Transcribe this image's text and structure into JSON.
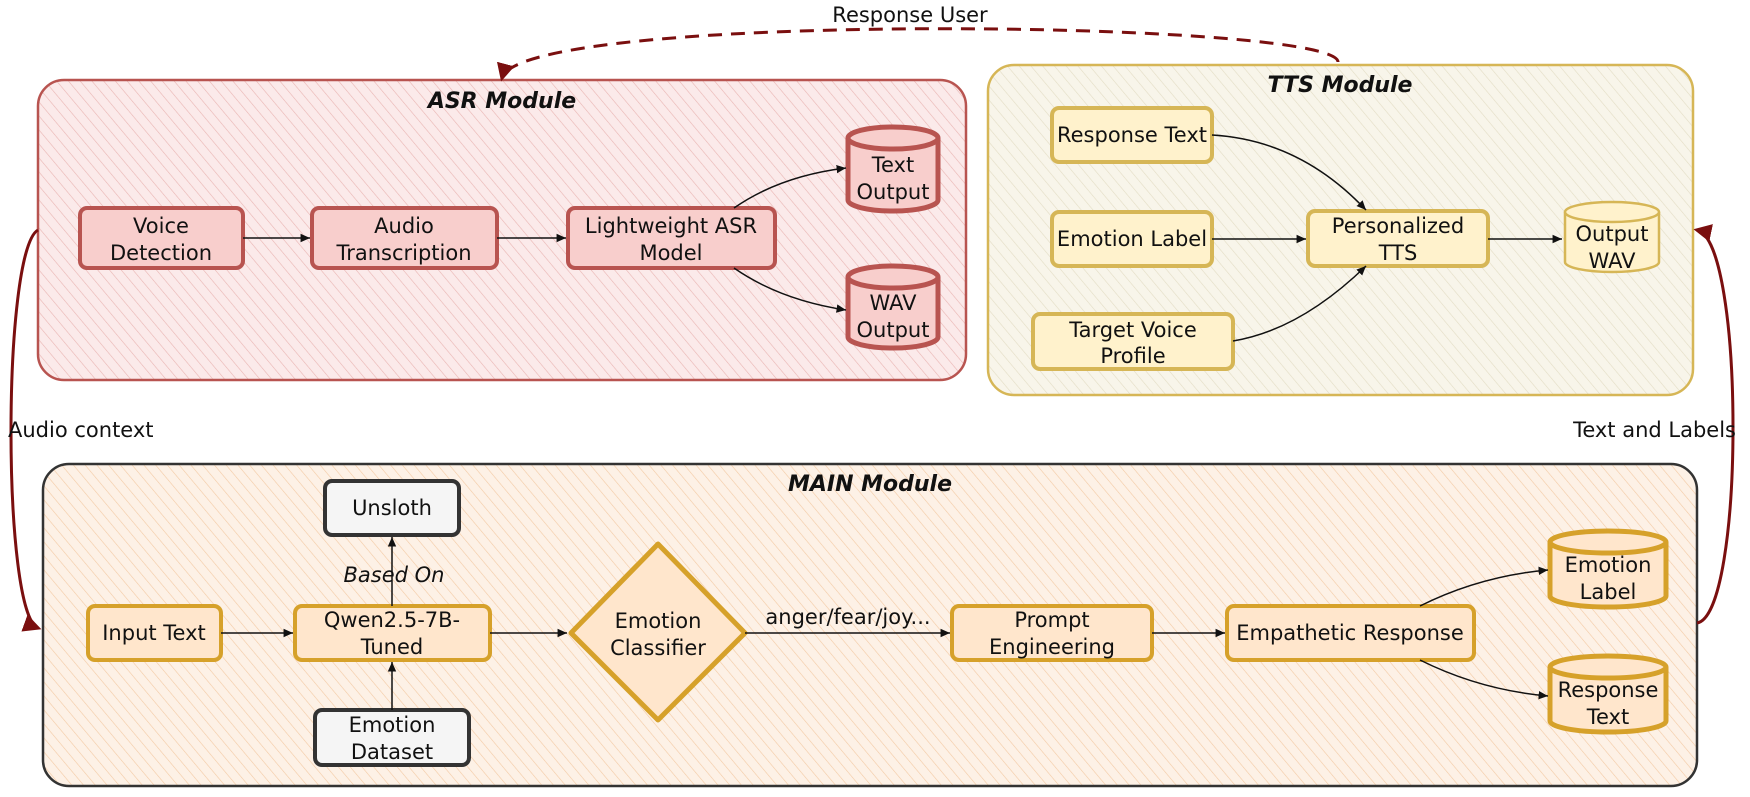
{
  "modules": {
    "asr": {
      "title": "ASR Module",
      "fill": "#f8cecc",
      "stroke": "#b85450"
    },
    "tts": {
      "title": "TTS Module",
      "fill": "#fff2cc",
      "stroke": "#d6b656"
    },
    "main": {
      "title": "MAIN Module",
      "fill": "#ffe6cc",
      "stroke": "#333333"
    }
  },
  "asr_nodes": {
    "voice_detection": [
      "Voice",
      "Detection"
    ],
    "audio_transcription": [
      "Audio",
      "Transcription"
    ],
    "lightweight_asr": [
      "Lightweight ASR",
      "Model"
    ],
    "text_output": [
      "Text",
      "Output"
    ],
    "wav_output": [
      "WAV",
      "Output"
    ]
  },
  "tts_nodes": {
    "response_text": "Response Text",
    "emotion_label": "Emotion Label",
    "target_voice": [
      "Target Voice",
      "Profile"
    ],
    "personalized_tts": [
      "Personalized",
      "TTS"
    ],
    "output_wav": [
      "Output",
      "WAV"
    ]
  },
  "main_nodes": {
    "input_text": "Input Text",
    "unsloth": "Unsloth",
    "based_on": "Based On",
    "qwen": [
      "Qwen2.5-7B-",
      "Tuned"
    ],
    "emotion_dataset": [
      "Emotion",
      "Dataset"
    ],
    "emotion_classifier": [
      "Emotion",
      "Classifier"
    ],
    "classes_label": "anger/fear/joy...",
    "prompt_engineering": [
      "Prompt",
      "Engineering"
    ],
    "empathetic_response": "Empathetic Response",
    "emotion_label_out": [
      "Emotion",
      "Label"
    ],
    "response_text_out": [
      "Response",
      "Text"
    ]
  },
  "connectors": {
    "response_user": "Response User",
    "audio_context": "Audio context",
    "text_and_labels": "Text and Labels",
    "loop_color": "#7a0f0f"
  }
}
